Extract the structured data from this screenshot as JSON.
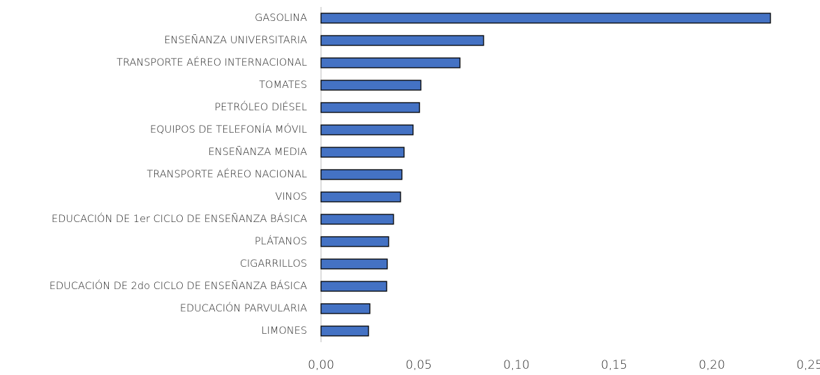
{
  "chart_data": {
    "type": "bar",
    "orientation": "horizontal",
    "categories": [
      "GASOLINA",
      "ENSEÑANZA UNIVERSITARIA",
      "TRANSPORTE AÉREO INTERNACIONAL",
      "TOMATES",
      "PETRÓLEO DIÉSEL",
      "EQUIPOS DE TELEFONÍA MÓVIL",
      "ENSEÑANZA MEDIA",
      "TRANSPORTE AÉREO NACIONAL",
      "VINOS",
      "EDUCACIÓN DE 1er CICLO DE ENSEÑANZA BÁSICA",
      "PLÁTANOS",
      "CIGARRILLOS",
      "EDUCACIÓN DE 2do CICLO DE ENSEÑANZA BÁSICA",
      "EDUCACIÓN PARVULARIA",
      "LIMONES"
    ],
    "values": [
      0.23,
      0.0832,
      0.0711,
      0.0511,
      0.0504,
      0.0471,
      0.0425,
      0.0414,
      0.0407,
      0.0371,
      0.0346,
      0.0339,
      0.0336,
      0.025,
      0.0243
    ],
    "color": "#4472c4",
    "xlim": [
      0,
      0.25
    ],
    "xticks": [
      {
        "value": 0,
        "label": "0,00"
      },
      {
        "value": 0.05,
        "label": "0,05"
      },
      {
        "value": 0.1,
        "label": "0,10"
      },
      {
        "value": 0.15,
        "label": "0,15"
      },
      {
        "value": 0.2,
        "label": "0,20"
      },
      {
        "value": 0.25,
        "label": "0,25"
      }
    ],
    "grid": false
  }
}
